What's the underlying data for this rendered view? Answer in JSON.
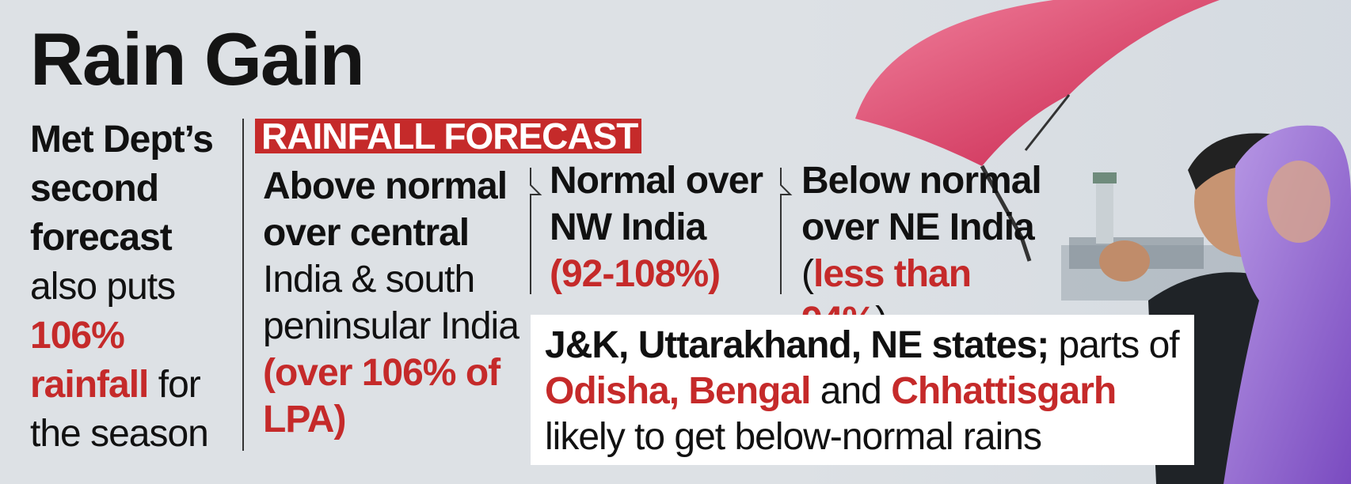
{
  "title": "Rain Gain",
  "intro": {
    "bold_line": "Met Dept’s second forecast",
    "plain_1": "also puts",
    "highlight": "106% rainfall",
    "plain_2": "for the season"
  },
  "tag": "RAINFALL FORECAST",
  "forecasts": [
    {
      "heading": "Above normal over central",
      "text": "India & south peninsular India",
      "figure": "(over 106% of LPA)"
    },
    {
      "heading": "Normal over NW India",
      "figure": "(92-108%)"
    },
    {
      "heading": "Below normal over NE India",
      "open": "(",
      "figure": "less than 94%",
      "close": ")"
    }
  ],
  "note": {
    "bold": "J&K, Uttarakhand, NE states;",
    "t1": "parts of",
    "r1": "Odisha, Bengal",
    "t2": "and",
    "r2": "Chhattisgarh",
    "t3": "likely to get below-normal rains"
  },
  "colors": {
    "accent": "#c52a2a",
    "background": "#dde1e5",
    "umbrella": "#e0456b",
    "raincoat": "#9a6fd0"
  }
}
